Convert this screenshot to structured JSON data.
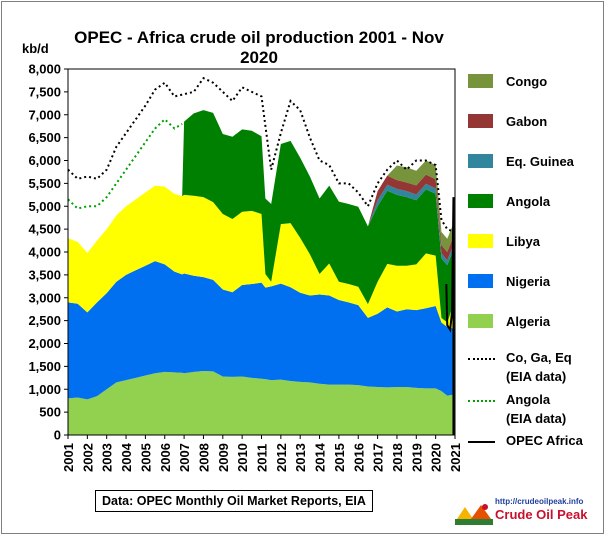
{
  "chart_data": {
    "type": "area",
    "title": "OPEC - Africa crude oil production 2001 - Nov 2020",
    "ylabel": "kb/d",
    "ylim": [
      0,
      8000
    ],
    "xlim": [
      2001,
      2021
    ],
    "yticks": [
      "0",
      "500",
      "1,000",
      "1,500",
      "2,000",
      "2,500",
      "3,000",
      "3,500",
      "4,000",
      "4,500",
      "5,000",
      "5,500",
      "6,000",
      "6,500",
      "7,000",
      "7,500",
      "8,000"
    ],
    "xticks": [
      "2001",
      "2002",
      "2003",
      "2004",
      "2005",
      "2006",
      "2007",
      "2008",
      "2009",
      "2010",
      "2011",
      "2012",
      "2013",
      "2014",
      "2015",
      "2016",
      "2017",
      "2018",
      "2019",
      "2020",
      "2021"
    ],
    "x": [
      2001.0,
      2001.5,
      2002.0,
      2002.5,
      2003.0,
      2003.5,
      2004.0,
      2004.5,
      2005.0,
      2005.5,
      2006.0,
      2006.5,
      2006.9,
      2007.0,
      2007.5,
      2008.0,
      2008.5,
      2009.0,
      2009.5,
      2010.0,
      2010.5,
      2011.0,
      2011.2,
      2011.5,
      2012.0,
      2012.5,
      2013.0,
      2013.5,
      2014.0,
      2014.5,
      2015.0,
      2015.5,
      2016.0,
      2016.5,
      2017.0,
      2017.5,
      2018.0,
      2018.5,
      2019.0,
      2019.5,
      2020.0,
      2020.3,
      2020.6,
      2020.9
    ],
    "series": [
      {
        "name": "Algeria",
        "color": "#92d050",
        "values": [
          800,
          820,
          780,
          850,
          1000,
          1150,
          1200,
          1250,
          1300,
          1350,
          1380,
          1370,
          1360,
          1350,
          1380,
          1400,
          1390,
          1280,
          1270,
          1280,
          1250,
          1230,
          1220,
          1200,
          1210,
          1180,
          1160,
          1150,
          1120,
          1100,
          1100,
          1100,
          1090,
          1060,
          1050,
          1040,
          1050,
          1050,
          1030,
          1020,
          1020,
          960,
          860,
          880
        ]
      },
      {
        "name": "Nigeria",
        "color": "#0070f0",
        "values": [
          2100,
          2050,
          1900,
          2050,
          2100,
          2200,
          2300,
          2350,
          2400,
          2450,
          2350,
          2200,
          2150,
          2180,
          2100,
          2050,
          2000,
          1900,
          1850,
          2000,
          2050,
          2100,
          2000,
          2050,
          2100,
          2050,
          1950,
          1900,
          1950,
          1950,
          1850,
          1800,
          1750,
          1500,
          1600,
          1750,
          1650,
          1700,
          1700,
          1750,
          1800,
          1500,
          1500,
          1450
        ]
      },
      {
        "name": "Libya",
        "color": "#ffff00",
        "values": [
          1400,
          1350,
          1300,
          1350,
          1400,
          1450,
          1500,
          1550,
          1600,
          1650,
          1700,
          1700,
          1710,
          1720,
          1750,
          1750,
          1700,
          1650,
          1600,
          1600,
          1600,
          1500,
          300,
          100,
          1300,
          1400,
          1200,
          900,
          450,
          700,
          400,
          400,
          400,
          300,
          700,
          950,
          1000,
          950,
          1000,
          1200,
          1100,
          100,
          100,
          500
        ]
      },
      {
        "name": "Angola",
        "color": "#008000",
        "values": [
          0,
          0,
          0,
          0,
          0,
          0,
          0,
          0,
          0,
          0,
          0,
          0,
          0,
          1600,
          1800,
          1900,
          1950,
          1750,
          1800,
          1800,
          1750,
          1700,
          1650,
          1700,
          1750,
          1800,
          1750,
          1700,
          1650,
          1700,
          1750,
          1750,
          1750,
          1700,
          1650,
          1600,
          1550,
          1500,
          1400,
          1400,
          1350,
          1300,
          1250,
          1200
        ]
      },
      {
        "name": "Eq. Guinea",
        "color": "#31859c",
        "values": [
          0,
          0,
          0,
          0,
          0,
          0,
          0,
          0,
          0,
          0,
          0,
          0,
          0,
          0,
          0,
          0,
          0,
          0,
          0,
          0,
          0,
          0,
          0,
          0,
          0,
          0,
          0,
          0,
          0,
          0,
          0,
          0,
          0,
          0,
          130,
          130,
          130,
          130,
          125,
          120,
          120,
          110,
          110,
          110
        ]
      },
      {
        "name": "Gabon",
        "color": "#943634",
        "values": [
          0,
          0,
          0,
          0,
          0,
          0,
          0,
          0,
          0,
          0,
          0,
          0,
          0,
          0,
          0,
          0,
          0,
          0,
          0,
          0,
          0,
          0,
          0,
          0,
          0,
          0,
          0,
          0,
          0,
          0,
          0,
          0,
          0,
          0,
          200,
          200,
          190,
          190,
          200,
          200,
          200,
          180,
          180,
          180
        ]
      },
      {
        "name": "Congo",
        "color": "#77933c",
        "values": [
          0,
          0,
          0,
          0,
          0,
          0,
          0,
          0,
          0,
          0,
          0,
          0,
          0,
          0,
          0,
          0,
          0,
          0,
          0,
          0,
          0,
          0,
          0,
          0,
          0,
          0,
          0,
          0,
          0,
          0,
          0,
          0,
          0,
          0,
          0,
          0,
          320,
          330,
          320,
          310,
          310,
          290,
          290,
          280
        ]
      }
    ],
    "lines": [
      {
        "name": "Co, Ga, Eq (EIA data)",
        "style": "dotted",
        "color": "#000000",
        "x": [
          2001.0,
          2001.5,
          2002.0,
          2002.5,
          2003.0,
          2003.5,
          2004.0,
          2004.5,
          2005.0,
          2005.5,
          2006.0,
          2006.5,
          2007.0,
          2007.5,
          2008.0,
          2008.5,
          2009.0,
          2009.5,
          2010.0,
          2010.5,
          2011.0,
          2011.5,
          2012.0,
          2012.5,
          2013.0,
          2013.5,
          2014.0,
          2014.5,
          2015.0,
          2015.5,
          2016.0,
          2016.5,
          2017.0,
          2017.5,
          2018.0,
          2018.5,
          2019.0,
          2019.5,
          2020.0,
          2020.3,
          2020.6,
          2020.9
        ],
        "values": [
          5800,
          5600,
          5650,
          5600,
          5800,
          6300,
          6600,
          6900,
          7200,
          7550,
          7700,
          7400,
          7450,
          7500,
          7800,
          7700,
          7500,
          7300,
          7600,
          7500,
          7400,
          5800,
          6600,
          7300,
          7100,
          6500,
          6000,
          5900,
          5500,
          5500,
          5300,
          5000,
          5500,
          5800,
          6000,
          5800,
          6000,
          6000,
          5900,
          4700,
          4500,
          4450
        ]
      },
      {
        "name": "Angola (EIA data)",
        "style": "dotted",
        "color": "#00a000",
        "x": [
          2001.0,
          2001.5,
          2002.0,
          2002.5,
          2003.0,
          2003.5,
          2004.0,
          2004.5,
          2005.0,
          2005.5,
          2006.0,
          2006.5,
          2006.9
        ],
        "values": [
          5150,
          4950,
          5000,
          5000,
          5200,
          5500,
          5800,
          6100,
          6400,
          6700,
          6900,
          6700,
          6800
        ]
      },
      {
        "name": "OPEC Africa",
        "style": "solid",
        "color": "#000000",
        "x": [
          2020.55,
          2020.6,
          2020.75,
          2020.85,
          2020.92,
          2020.92
        ],
        "values": [
          3300,
          2400,
          2300,
          2700,
          5200,
          0
        ]
      }
    ],
    "legend": [
      {
        "label": "Congo",
        "kind": "area",
        "color": "#77933c"
      },
      {
        "label": "Gabon",
        "kind": "area",
        "color": "#943634"
      },
      {
        "label": "Eq. Guinea",
        "kind": "area",
        "color": "#31859c"
      },
      {
        "label": "Angola",
        "kind": "area",
        "color": "#008000"
      },
      {
        "label": "Libya",
        "kind": "area",
        "color": "#ffff00"
      },
      {
        "label": "Nigeria",
        "kind": "area",
        "color": "#0070f0"
      },
      {
        "label": "Algeria",
        "kind": "area",
        "color": "#92d050"
      },
      {
        "label": "Co, Ga, Eq",
        "label2": "(EIA data)",
        "kind": "dotted",
        "color": "#000000"
      },
      {
        "label": "Angola",
        "label2": "(EIA data)",
        "kind": "dotted",
        "color": "#00a000"
      },
      {
        "label": "OPEC Africa",
        "kind": "solid",
        "color": "#000000"
      }
    ],
    "legend_position": "right",
    "grid": false
  },
  "source_note": "Data: OPEC Monthly Oil Market Reports, EIA",
  "brand": {
    "url": "http://crudeoilpeak.info",
    "name": "Crude Oil Peak"
  }
}
